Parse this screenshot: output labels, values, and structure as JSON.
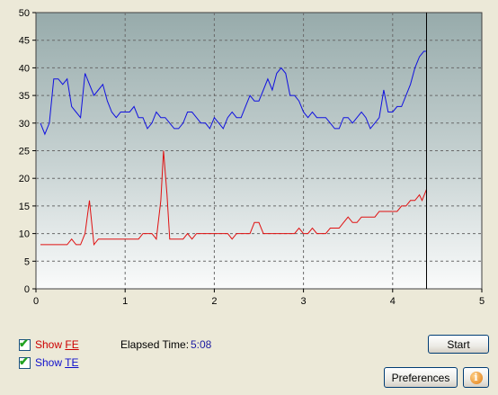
{
  "chart_data": {
    "type": "line",
    "xlim": [
      0,
      5
    ],
    "ylim": [
      0,
      50
    ],
    "x_ticks": [
      "0",
      "1",
      "2",
      "3",
      "4",
      "5"
    ],
    "y_ticks": [
      "0",
      "5",
      "10",
      "15",
      "20",
      "25",
      "30",
      "35",
      "40",
      "45",
      "50"
    ],
    "grid": true,
    "cursor_x": 4.38,
    "series": [
      {
        "color": "#1010e0",
        "points": [
          [
            0.05,
            30
          ],
          [
            0.1,
            28
          ],
          [
            0.15,
            30
          ],
          [
            0.2,
            38
          ],
          [
            0.25,
            38
          ],
          [
            0.3,
            37
          ],
          [
            0.35,
            38
          ],
          [
            0.4,
            33
          ],
          [
            0.45,
            32
          ],
          [
            0.5,
            31
          ],
          [
            0.55,
            39
          ],
          [
            0.6,
            37
          ],
          [
            0.65,
            35
          ],
          [
            0.7,
            36
          ],
          [
            0.75,
            37
          ],
          [
            0.8,
            34
          ],
          [
            0.85,
            32
          ],
          [
            0.9,
            31
          ],
          [
            0.95,
            32
          ],
          [
            1.0,
            32
          ],
          [
            1.05,
            32
          ],
          [
            1.1,
            33
          ],
          [
            1.15,
            31
          ],
          [
            1.2,
            31
          ],
          [
            1.25,
            29
          ],
          [
            1.3,
            30
          ],
          [
            1.35,
            32
          ],
          [
            1.4,
            31
          ],
          [
            1.45,
            31
          ],
          [
            1.5,
            30
          ],
          [
            1.55,
            29
          ],
          [
            1.6,
            29
          ],
          [
            1.65,
            30
          ],
          [
            1.7,
            32
          ],
          [
            1.75,
            32
          ],
          [
            1.8,
            31
          ],
          [
            1.85,
            30
          ],
          [
            1.9,
            30
          ],
          [
            1.95,
            29
          ],
          [
            2.0,
            31
          ],
          [
            2.05,
            30
          ],
          [
            2.1,
            29
          ],
          [
            2.15,
            31
          ],
          [
            2.2,
            32
          ],
          [
            2.25,
            31
          ],
          [
            2.3,
            31
          ],
          [
            2.35,
            33
          ],
          [
            2.4,
            35
          ],
          [
            2.45,
            34
          ],
          [
            2.5,
            34
          ],
          [
            2.55,
            36
          ],
          [
            2.6,
            38
          ],
          [
            2.65,
            36
          ],
          [
            2.7,
            39
          ],
          [
            2.75,
            40
          ],
          [
            2.8,
            39
          ],
          [
            2.85,
            35
          ],
          [
            2.9,
            35
          ],
          [
            2.95,
            34
          ],
          [
            3.0,
            32
          ],
          [
            3.05,
            31
          ],
          [
            3.1,
            32
          ],
          [
            3.15,
            31
          ],
          [
            3.2,
            31
          ],
          [
            3.25,
            31
          ],
          [
            3.3,
            30
          ],
          [
            3.35,
            29
          ],
          [
            3.4,
            29
          ],
          [
            3.45,
            31
          ],
          [
            3.5,
            31
          ],
          [
            3.55,
            30
          ],
          [
            3.6,
            31
          ],
          [
            3.65,
            32
          ],
          [
            3.7,
            31
          ],
          [
            3.75,
            29
          ],
          [
            3.8,
            30
          ],
          [
            3.85,
            31
          ],
          [
            3.9,
            36
          ],
          [
            3.95,
            32
          ],
          [
            4.0,
            32
          ],
          [
            4.05,
            33
          ],
          [
            4.1,
            33
          ],
          [
            4.15,
            35
          ],
          [
            4.2,
            37
          ],
          [
            4.25,
            40
          ],
          [
            4.3,
            42
          ],
          [
            4.35,
            43
          ],
          [
            4.38,
            43
          ]
        ]
      },
      {
        "color": "#e01010",
        "points": [
          [
            0.05,
            8
          ],
          [
            0.1,
            8
          ],
          [
            0.15,
            8
          ],
          [
            0.2,
            8
          ],
          [
            0.25,
            8
          ],
          [
            0.3,
            8
          ],
          [
            0.35,
            8
          ],
          [
            0.4,
            9
          ],
          [
            0.45,
            8
          ],
          [
            0.5,
            8
          ],
          [
            0.55,
            10
          ],
          [
            0.6,
            16
          ],
          [
            0.65,
            8
          ],
          [
            0.7,
            9
          ],
          [
            0.75,
            9
          ],
          [
            0.8,
            9
          ],
          [
            0.85,
            9
          ],
          [
            0.9,
            9
          ],
          [
            0.95,
            9
          ],
          [
            1.0,
            9
          ],
          [
            1.05,
            9
          ],
          [
            1.1,
            9
          ],
          [
            1.15,
            9
          ],
          [
            1.2,
            10
          ],
          [
            1.25,
            10
          ],
          [
            1.3,
            10
          ],
          [
            1.35,
            9
          ],
          [
            1.4,
            16
          ],
          [
            1.43,
            25
          ],
          [
            1.47,
            17
          ],
          [
            1.5,
            9
          ],
          [
            1.55,
            9
          ],
          [
            1.6,
            9
          ],
          [
            1.65,
            9
          ],
          [
            1.7,
            10
          ],
          [
            1.75,
            9
          ],
          [
            1.8,
            10
          ],
          [
            1.85,
            10
          ],
          [
            1.9,
            10
          ],
          [
            1.95,
            10
          ],
          [
            2.0,
            10
          ],
          [
            2.05,
            10
          ],
          [
            2.1,
            10
          ],
          [
            2.15,
            10
          ],
          [
            2.2,
            9
          ],
          [
            2.25,
            10
          ],
          [
            2.3,
            10
          ],
          [
            2.35,
            10
          ],
          [
            2.4,
            10
          ],
          [
            2.45,
            12
          ],
          [
            2.5,
            12
          ],
          [
            2.55,
            10
          ],
          [
            2.6,
            10
          ],
          [
            2.65,
            10
          ],
          [
            2.7,
            10
          ],
          [
            2.75,
            10
          ],
          [
            2.8,
            10
          ],
          [
            2.85,
            10
          ],
          [
            2.9,
            10
          ],
          [
            2.95,
            11
          ],
          [
            3.0,
            10
          ],
          [
            3.05,
            10
          ],
          [
            3.1,
            11
          ],
          [
            3.15,
            10
          ],
          [
            3.2,
            10
          ],
          [
            3.25,
            10
          ],
          [
            3.3,
            11
          ],
          [
            3.35,
            11
          ],
          [
            3.4,
            11
          ],
          [
            3.45,
            12
          ],
          [
            3.5,
            13
          ],
          [
            3.55,
            12
          ],
          [
            3.6,
            12
          ],
          [
            3.65,
            13
          ],
          [
            3.7,
            13
          ],
          [
            3.75,
            13
          ],
          [
            3.8,
            13
          ],
          [
            3.85,
            14
          ],
          [
            3.9,
            14
          ],
          [
            3.95,
            14
          ],
          [
            4.0,
            14
          ],
          [
            4.05,
            14
          ],
          [
            4.1,
            15
          ],
          [
            4.15,
            15
          ],
          [
            4.2,
            16
          ],
          [
            4.25,
            16
          ],
          [
            4.3,
            17
          ],
          [
            4.33,
            16
          ],
          [
            4.38,
            18
          ]
        ]
      }
    ]
  },
  "controls": {
    "show_fe_prefix": "Show ",
    "show_fe_key": "FE",
    "show_fe_checked": true,
    "show_fe_color": "#cc0000",
    "show_te_prefix": "Show ",
    "show_te_key": "TE",
    "show_te_checked": true,
    "show_te_color": "#1010cc",
    "elapsed_label": "Elapsed Time:",
    "elapsed_value": "5:08",
    "start_label": "Start",
    "preferences_label": "Preferences",
    "info_icon": "info-icon",
    "info_glyph": "i"
  }
}
